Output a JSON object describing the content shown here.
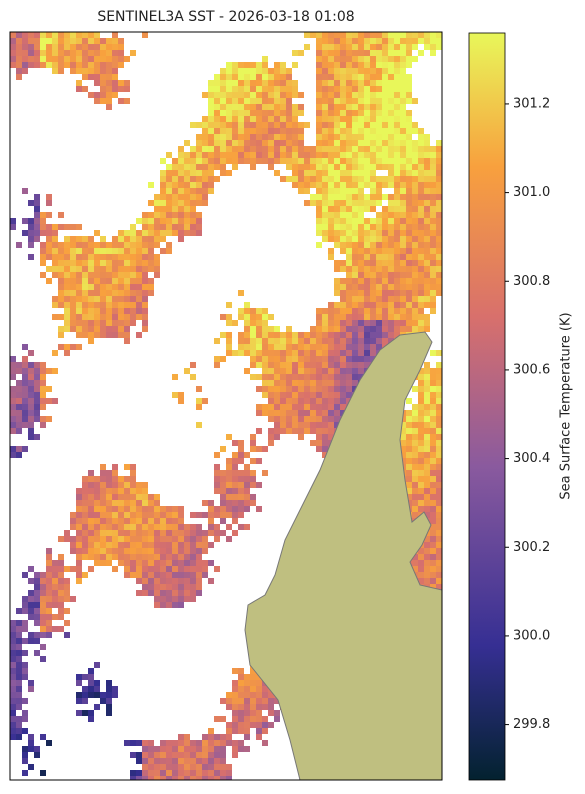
{
  "map": {
    "title": "SENTINEL3A SST - 2026-03-18 01:08",
    "colorbar": {
      "label": "Sea Surface Temperature (K)",
      "lim": [
        299.675,
        301.36
      ],
      "ticks": [
        299.8,
        {
          "value": 300.0,
          "label": "300.0"
        },
        300.2,
        300.4,
        300.6,
        300.8,
        {
          "value": 301.0,
          "label": "301.0"
        },
        301.2
      ]
    }
  }
}
